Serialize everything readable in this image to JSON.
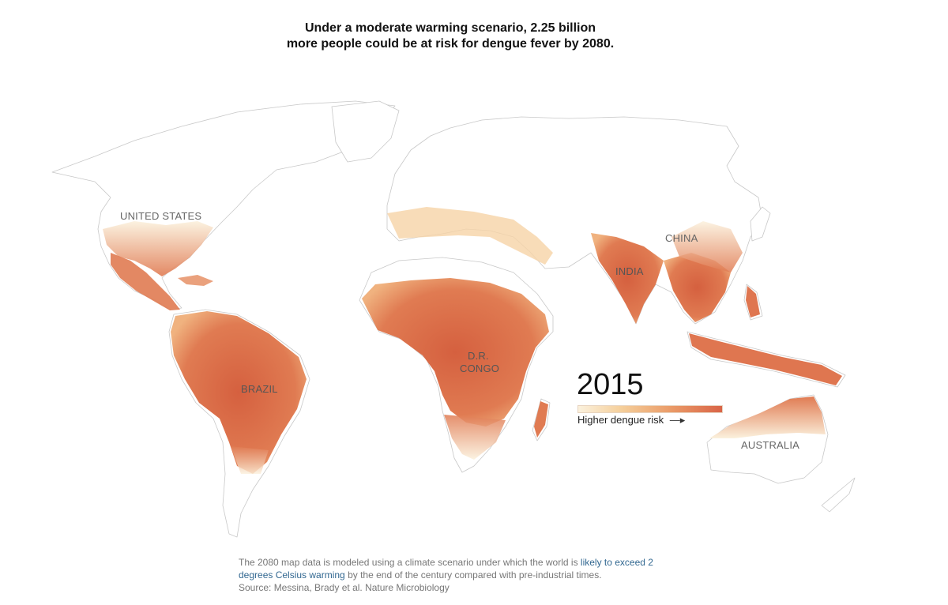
{
  "title": {
    "line1": "Under a moderate warming scenario, 2.25 billion",
    "line2": "more people could be at risk for dengue fever by 2080."
  },
  "map": {
    "year": "2015",
    "labels": {
      "united_states": "UNITED STATES",
      "china": "CHINA",
      "india": "INDIA",
      "brazil": "BRAZIL",
      "dr_congo_line1": "D.R.",
      "dr_congo_line2": "CONGO",
      "australia": "AUSTRALIA"
    },
    "colors": {
      "land_outline": "#cfcfcf",
      "risk_low": "#fbf1dd",
      "risk_mid": "#f0b27f",
      "risk_high": "#d96447"
    }
  },
  "legend": {
    "label": "Higher dengue risk",
    "arrow_icon": "right-arrow-icon"
  },
  "notes": {
    "text_before_link": "The 2080 map data is modeled using a climate scenario under which the world is ",
    "link_text": "likely to exceed 2 degrees Celsius warming",
    "text_after_link": " by the end of the century compared with pre-industrial times.",
    "source": "Source: Messina, Brady et al. Nature Microbiology"
  }
}
